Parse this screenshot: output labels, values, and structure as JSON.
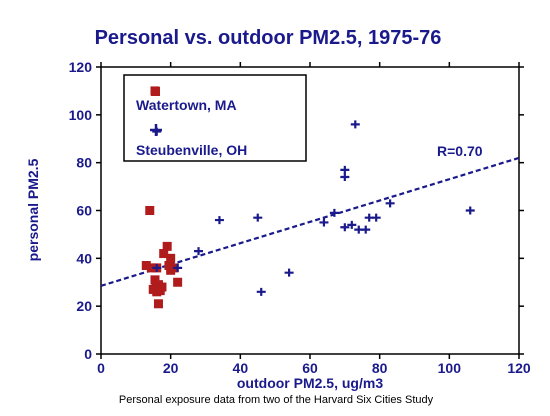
{
  "colors": {
    "navy": "#1a1a8c",
    "red": "#b01c1c",
    "black": "#000000"
  },
  "chart_data": {
    "type": "scatter",
    "title": "Personal vs. outdoor PM2.5, 1975-76",
    "xlabel": "outdoor PM2.5, ug/m3",
    "ylabel": "personal PM2.5",
    "xlim": [
      0,
      120
    ],
    "ylim": [
      0,
      120
    ],
    "xticks": [
      0,
      20,
      40,
      60,
      80,
      100,
      120
    ],
    "yticks": [
      0,
      20,
      40,
      60,
      80,
      100,
      120
    ],
    "grid": false,
    "legend_position": "top-left",
    "series": [
      {
        "name": "Watertown, MA",
        "marker": "square",
        "color": "#b01c1c",
        "points": [
          [
            15.5,
            110
          ],
          [
            14,
            60
          ],
          [
            13,
            37
          ],
          [
            16,
            36
          ],
          [
            14.5,
            36
          ],
          [
            15.5,
            31
          ],
          [
            16.5,
            29
          ],
          [
            15.8,
            27.5
          ],
          [
            17,
            26.5
          ],
          [
            16,
            26
          ],
          [
            15,
            27
          ],
          [
            17.5,
            28
          ],
          [
            16.5,
            21
          ],
          [
            19,
            45
          ],
          [
            18,
            42
          ],
          [
            20,
            40
          ],
          [
            21,
            36
          ],
          [
            20,
            35
          ],
          [
            22,
            30
          ],
          [
            19.5,
            37
          ]
        ]
      },
      {
        "name": "Steubenville, OH",
        "marker": "plus",
        "color": "#1a1a8c",
        "points": [
          [
            16,
            93
          ],
          [
            16,
            36
          ],
          [
            22,
            36
          ],
          [
            28,
            43
          ],
          [
            34,
            56
          ],
          [
            45,
            57
          ],
          [
            46,
            26
          ],
          [
            54,
            34
          ],
          [
            64,
            55
          ],
          [
            67,
            59
          ],
          [
            70,
            77
          ],
          [
            70,
            74
          ],
          [
            70,
            53
          ],
          [
            72,
            54
          ],
          [
            73,
            96
          ],
          [
            74,
            52
          ],
          [
            76,
            52
          ],
          [
            77,
            57
          ],
          [
            79,
            57
          ],
          [
            83,
            63
          ],
          [
            106,
            60
          ]
        ]
      }
    ],
    "trendline": {
      "label": "R=0.70",
      "x": [
        0,
        120
      ],
      "y": [
        28.5,
        82
      ]
    },
    "caption": "Personal exposure data from two of the Harvard Six Cities Study"
  }
}
